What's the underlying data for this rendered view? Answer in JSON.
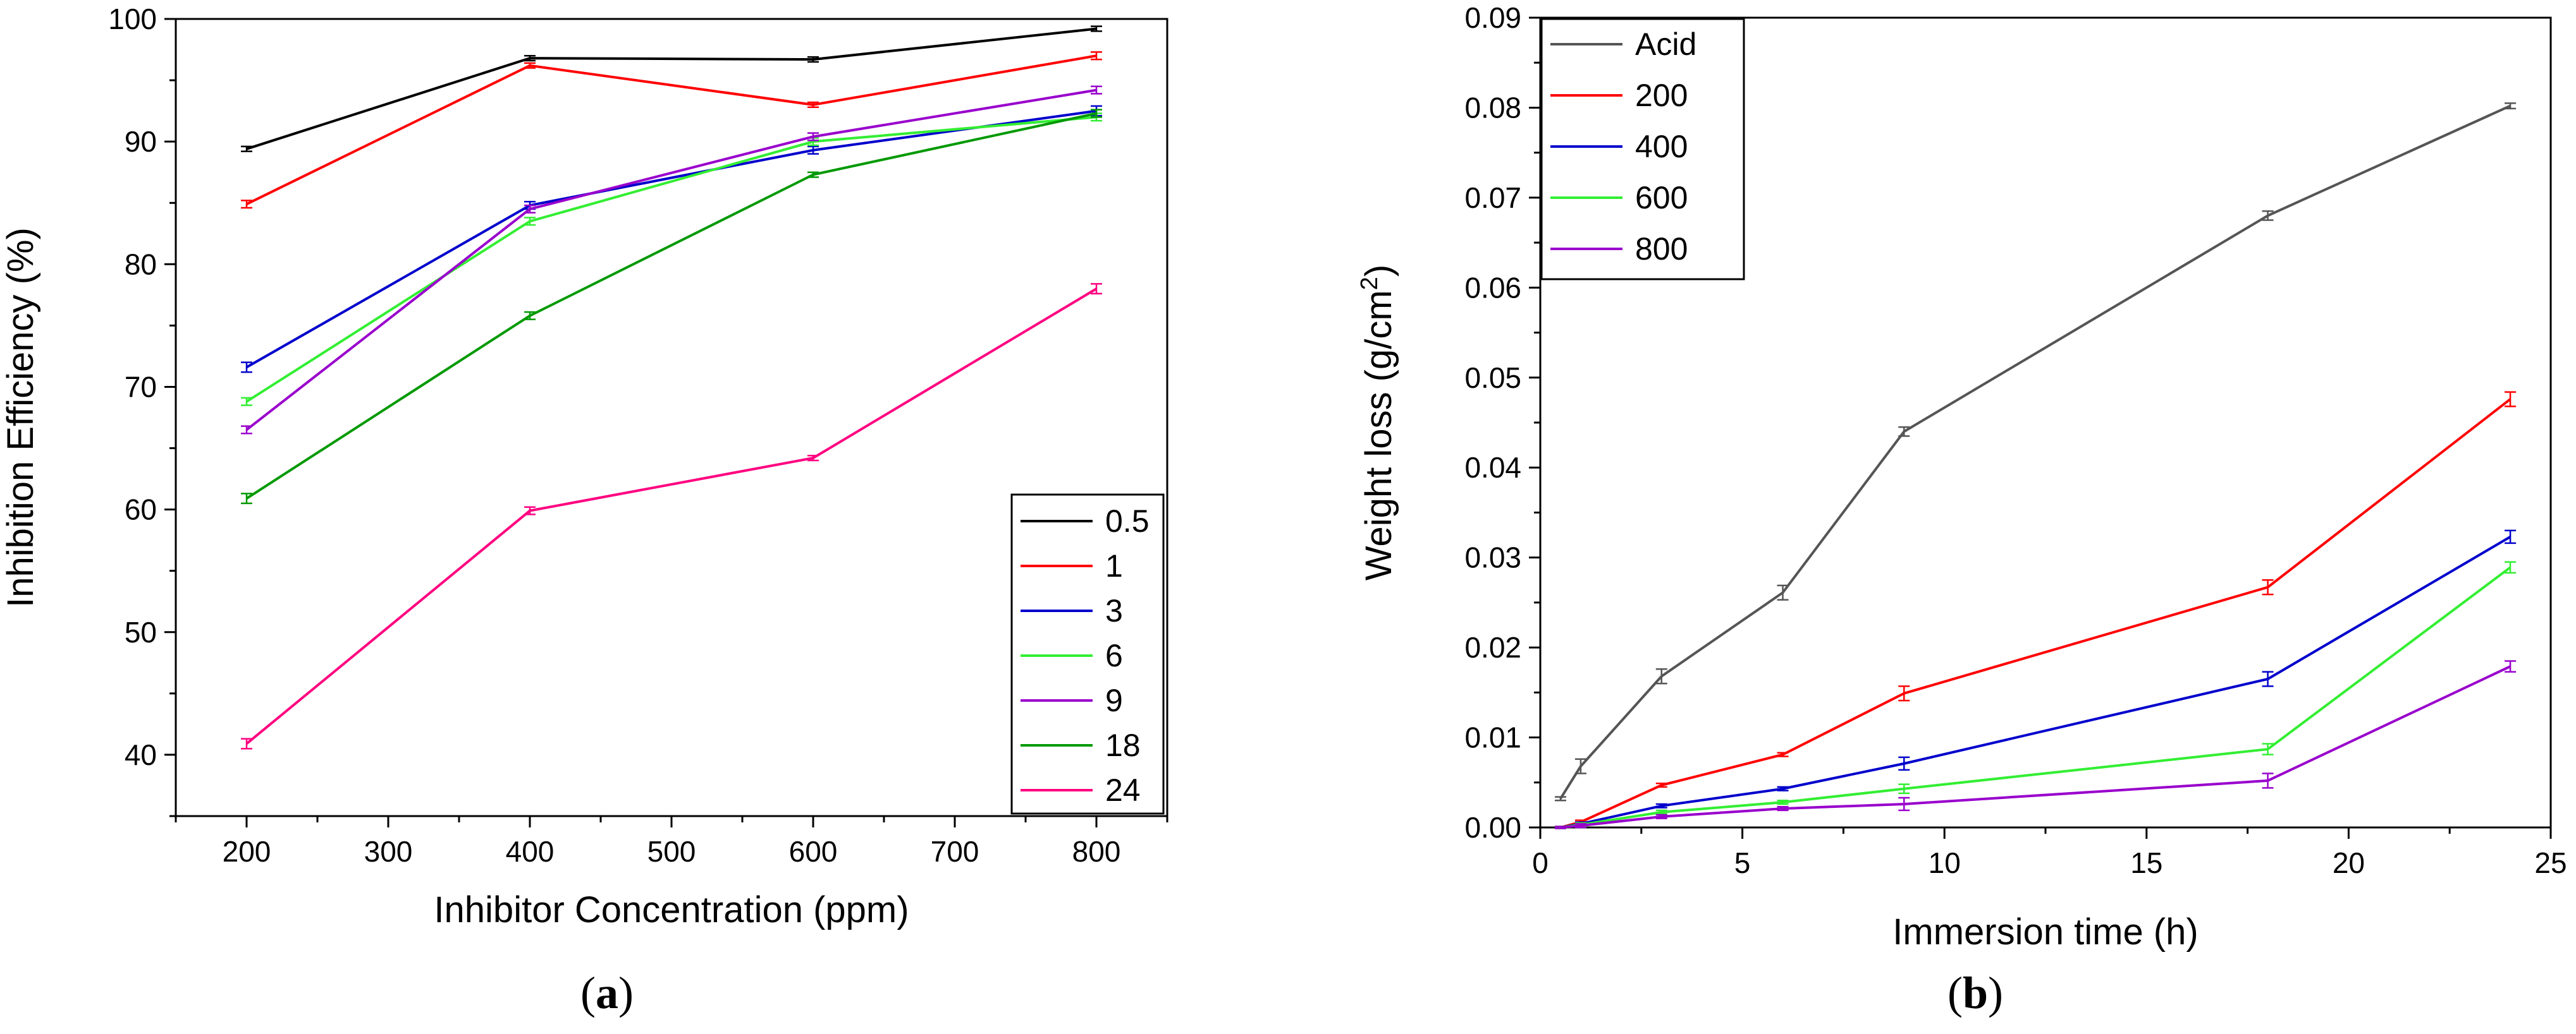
{
  "chart_data": [
    {
      "id": "a",
      "type": "line",
      "panel_label": "a",
      "title": "",
      "xlabel": "Inhibitor Concentration (ppm)",
      "ylabel": "Inhibition Efficiency (%)",
      "xlim": [
        150,
        850
      ],
      "ylim": [
        35,
        100
      ],
      "xticks": [
        200,
        300,
        400,
        500,
        600,
        700,
        800
      ],
      "yticks": [
        40,
        50,
        60,
        70,
        80,
        90,
        100
      ],
      "legend_position": "bottom-right",
      "x": [
        200,
        400,
        600,
        800
      ],
      "series": [
        {
          "name": "0.5",
          "color": "#000000",
          "values": [
            89.4,
            96.8,
            96.7,
            99.2
          ],
          "err": [
            0.2,
            0.2,
            0.2,
            0.2
          ]
        },
        {
          "name": "1",
          "color": "#ff0000",
          "values": [
            84.9,
            96.2,
            93.0,
            97.0
          ],
          "err": [
            0.3,
            0.2,
            0.2,
            0.3
          ]
        },
        {
          "name": "3",
          "color": "#0000cc",
          "values": [
            71.6,
            84.8,
            89.3,
            92.5
          ],
          "err": [
            0.4,
            0.3,
            0.3,
            0.4
          ]
        },
        {
          "name": "6",
          "color": "#33ee33",
          "values": [
            68.8,
            83.5,
            90.0,
            92.0
          ],
          "err": [
            0.3,
            0.3,
            0.3,
            0.3
          ]
        },
        {
          "name": "9",
          "color": "#9900cc",
          "values": [
            66.5,
            84.5,
            90.4,
            94.2
          ],
          "err": [
            0.3,
            0.3,
            0.3,
            0.3
          ]
        },
        {
          "name": "18",
          "color": "#009900",
          "values": [
            60.9,
            75.8,
            87.3,
            92.3
          ],
          "err": [
            0.4,
            0.3,
            0.2,
            0.3
          ]
        },
        {
          "name": "24",
          "color": "#ff0080",
          "values": [
            40.9,
            59.9,
            64.2,
            78.0
          ],
          "err": [
            0.4,
            0.3,
            0.2,
            0.4
          ]
        }
      ]
    },
    {
      "id": "b",
      "type": "line",
      "panel_label": "b",
      "title": "",
      "xlabel": "Immersion time (h)",
      "ylabel_main": "Weight loss (g/cm",
      "ylabel_sup": "2",
      "ylabel_end": ")",
      "xlim": [
        0,
        25
      ],
      "ylim": [
        0,
        0.09
      ],
      "xticks": [
        0,
        5,
        10,
        15,
        20,
        25
      ],
      "yticks": [
        0.0,
        0.01,
        0.02,
        0.03,
        0.04,
        0.05,
        0.06,
        0.07,
        0.08,
        0.09
      ],
      "ytick_labels": [
        "0.00",
        "0.01",
        "0.02",
        "0.03",
        "0.04",
        "0.05",
        "0.06",
        "0.07",
        "0.08",
        "0.09"
      ],
      "legend_position": "top-left",
      "series": [
        {
          "name": "Acid",
          "color": "#555555",
          "x": [
            0.5,
            1,
            3,
            6,
            9,
            18,
            24
          ],
          "values": [
            0.0032,
            0.0068,
            0.0168,
            0.0261,
            0.044,
            0.068,
            0.0802
          ],
          "err": [
            0.0002,
            0.0008,
            0.0008,
            0.0008,
            0.0005,
            0.0005,
            0.0003
          ]
        },
        {
          "name": "200",
          "color": "#ff0000",
          "x": [
            0.5,
            1,
            3,
            6,
            9,
            18,
            24
          ],
          "values": [
            0.0,
            0.0006,
            0.0047,
            0.0081,
            0.0149,
            0.0267,
            0.0476
          ],
          "err": [
            0.0001,
            0.0002,
            0.0002,
            0.0002,
            0.0008,
            0.0008,
            0.0008
          ]
        },
        {
          "name": "400",
          "color": "#0000cc",
          "x": [
            0.5,
            1,
            3,
            6,
            9,
            18,
            24
          ],
          "values": [
            0.0,
            0.0004,
            0.0024,
            0.0043,
            0.0071,
            0.0165,
            0.0323
          ],
          "err": [
            0.0001,
            0.0002,
            0.0002,
            0.0002,
            0.0007,
            0.0008,
            0.0007
          ]
        },
        {
          "name": "600",
          "color": "#33ee33",
          "x": [
            0.5,
            1,
            3,
            6,
            9,
            18,
            24
          ],
          "values": [
            0.0,
            0.0003,
            0.0017,
            0.0028,
            0.0043,
            0.0087,
            0.0289
          ],
          "err": [
            0.0001,
            0.0002,
            0.0002,
            0.0002,
            0.0005,
            0.0006,
            0.0006
          ]
        },
        {
          "name": "800",
          "color": "#9900cc",
          "x": [
            0.5,
            1,
            3,
            6,
            9,
            18,
            24
          ],
          "values": [
            0.0,
            0.0002,
            0.0012,
            0.0021,
            0.0026,
            0.0052,
            0.0179
          ],
          "err": [
            0.0001,
            0.0002,
            0.0002,
            0.0002,
            0.0007,
            0.0008,
            0.0006
          ]
        }
      ]
    }
  ]
}
